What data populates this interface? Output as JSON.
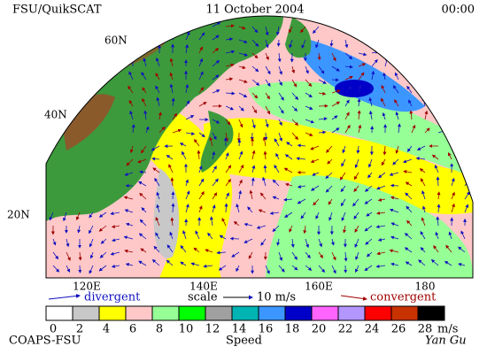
{
  "header": {
    "left": "FSU/QuikSCAT",
    "center": "11 October 2004",
    "right": "00:00"
  },
  "lat_labels": [
    "60N",
    "40N",
    "20N"
  ],
  "lon_labels": [
    "120E",
    "140E",
    "160E",
    "180"
  ],
  "legend": {
    "divergent": "divergent",
    "scale": "scale",
    "scale_value": "10 m/s",
    "convergent": "convergent"
  },
  "colorbar": {
    "ticks": [
      0,
      2,
      4,
      6,
      8,
      10,
      12,
      14,
      16,
      18,
      20,
      22,
      24,
      26,
      28
    ],
    "colors": [
      "#ffffff",
      "#c8c8c8",
      "#ffff00",
      "#ffc8c8",
      "#96ff96",
      "#00ff00",
      "#a0a0a0",
      "#00b4b4",
      "#3c96ff",
      "#0000c8",
      "#ff64ff",
      "#b496ff",
      "#ff0000",
      "#c83200",
      "#000000"
    ],
    "unit": "m/s",
    "label": "Speed"
  },
  "footer": {
    "left": "COAPS-FSU",
    "right": "Yan Gu"
  }
}
